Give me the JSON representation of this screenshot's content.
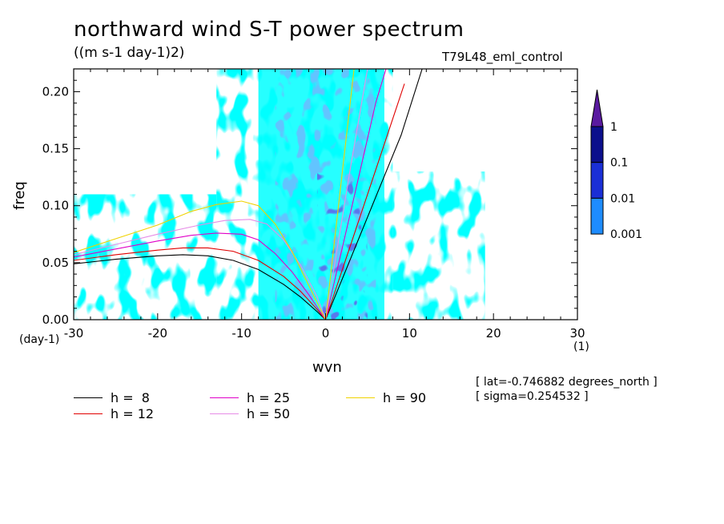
{
  "header": {
    "title": "northward wind S-T power spectrum",
    "units": "((m s-1 day-1)2)",
    "run_name": "T79L48_eml_control"
  },
  "info": {
    "lat_line": "[ lat=-0.746882 degrees_north ]",
    "sigma_line": "[ sigma=0.254532 ]"
  },
  "axis_units": {
    "x_unit_left": "(day-1)",
    "x_unit_right": "(1)"
  },
  "colors": {
    "level_0_001": "#00ffff",
    "level_0_01": "#1e8cff",
    "level_0_1": "#1a2fd6",
    "level_1": "#0c108c",
    "level_overflow": "#5a1aa0"
  },
  "colorbar": {
    "labels": [
      "0.001",
      "0.01",
      "0.1",
      "1"
    ],
    "colors": [
      "#00ffff",
      "#1e8cff",
      "#1a2fd6",
      "#0c108c",
      "#5a1aa0"
    ]
  },
  "legend": [
    {
      "label": "h =  8",
      "color": "#000000"
    },
    {
      "label": "h = 12",
      "color": "#e00000"
    },
    {
      "label": "h = 25",
      "color": "#e000c8"
    },
    {
      "label": "h = 50",
      "color": "#e68ce6"
    },
    {
      "label": "h = 90",
      "color": "#f0d200"
    }
  ],
  "chart_data": {
    "type": "heatmap",
    "title": "northward wind S-T power spectrum",
    "subtitle": "((m s-1 day-1)2)",
    "xlabel": "wvn",
    "ylabel": "freq",
    "xlim": [
      -30,
      30
    ],
    "ylim": [
      0,
      0.22
    ],
    "x_ticks": [
      -30,
      -20,
      -10,
      0,
      10,
      20,
      30
    ],
    "x_tick_labels": [
      "-30",
      "-20",
      "-10",
      "0",
      "10",
      "20",
      "30"
    ],
    "y_ticks": [
      0.0,
      0.05,
      0.1,
      0.15,
      0.2
    ],
    "y_tick_labels": [
      "0.00",
      "0.05",
      "0.10",
      "0.15",
      "0.20"
    ],
    "contour_levels": [
      0.001,
      0.01,
      0.1,
      1
    ],
    "field_description_regions": [
      {
        "level": 0.001,
        "region": "broad band wvn -13 to 8, all freq; plus scattered patches wvn -30 to 18"
      },
      {
        "level": 0.01,
        "region": "patches wvn -6 to 6, freq 0.0 to 0.22, strongest near wvn 0-5"
      },
      {
        "level": 0.1,
        "region": "small patches wvn 0 to 5"
      }
    ],
    "dispersion_curves": [
      {
        "name": "h =  8",
        "color": "#000000",
        "westward": {
          "x": [
            -30,
            -25,
            -20,
            -17,
            -14,
            -11,
            -8,
            -5,
            -3,
            -1,
            0
          ],
          "y": [
            0.049,
            0.053,
            0.056,
            0.057,
            0.056,
            0.052,
            0.044,
            0.031,
            0.02,
            0.007,
            0.0
          ]
        },
        "eastward": {
          "x": [
            0,
            3,
            6,
            9,
            11.5
          ],
          "y": [
            0.0,
            0.054,
            0.108,
            0.162,
            0.22
          ]
        }
      },
      {
        "name": "h = 12",
        "color": "#e00000",
        "westward": {
          "x": [
            -30,
            -25,
            -20,
            -17,
            -14,
            -11,
            -8,
            -5,
            -3,
            -1,
            0
          ],
          "y": [
            0.052,
            0.057,
            0.061,
            0.063,
            0.063,
            0.06,
            0.052,
            0.038,
            0.025,
            0.009,
            0.0
          ]
        },
        "eastward": {
          "x": [
            0,
            3,
            6,
            9.4
          ],
          "y": [
            0.0,
            0.066,
            0.132,
            0.207
          ]
        }
      },
      {
        "name": "h = 25",
        "color": "#e000c8",
        "westward": {
          "x": [
            -30,
            -25,
            -20,
            -16,
            -13,
            -10,
            -8,
            -6,
            -4,
            -2,
            0
          ],
          "y": [
            0.055,
            0.062,
            0.069,
            0.074,
            0.076,
            0.075,
            0.07,
            0.058,
            0.042,
            0.022,
            0.0
          ]
        },
        "eastward": {
          "x": [
            0,
            3,
            6,
            7.2
          ],
          "y": [
            0.0,
            0.095,
            0.191,
            0.22
          ]
        }
      },
      {
        "name": "h = 50",
        "color": "#e68ce6",
        "westward": {
          "x": [
            -30,
            -25,
            -20,
            -15,
            -12,
            -9,
            -7,
            -5,
            -3,
            -1,
            0
          ],
          "y": [
            0.057,
            0.066,
            0.075,
            0.083,
            0.087,
            0.088,
            0.084,
            0.07,
            0.048,
            0.02,
            0.0
          ]
        },
        "eastward": {
          "x": [
            0,
            3,
            5
          ],
          "y": [
            0.0,
            0.135,
            0.22
          ]
        }
      },
      {
        "name": "h = 90",
        "color": "#f0d200",
        "westward": {
          "x": [
            -30,
            -25,
            -20,
            -16,
            -13,
            -10,
            -8,
            -6,
            -4,
            -2,
            0
          ],
          "y": [
            0.059,
            0.071,
            0.083,
            0.095,
            0.101,
            0.104,
            0.1,
            0.084,
            0.06,
            0.03,
            0.0
          ]
        },
        "eastward": {
          "x": [
            0,
            2,
            3.4
          ],
          "y": [
            0.0,
            0.13,
            0.22
          ]
        }
      }
    ]
  }
}
